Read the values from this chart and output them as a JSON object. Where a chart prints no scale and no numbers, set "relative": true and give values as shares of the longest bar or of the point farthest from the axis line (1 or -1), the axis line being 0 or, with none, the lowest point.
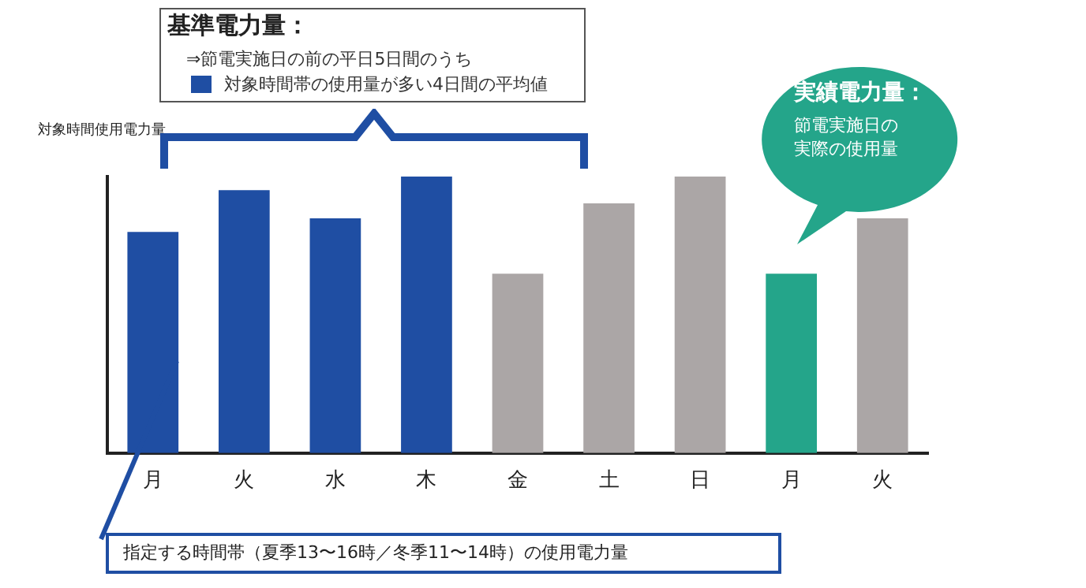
{
  "chart_data": {
    "type": "bar",
    "title": "基準電力量：",
    "ylabel": "対象時間使用電力量",
    "categories": [
      "月",
      "火",
      "水",
      "木",
      "金",
      "土",
      "日",
      "月",
      "火"
    ],
    "relative": true,
    "values": [
      0.8,
      0.951,
      0.849,
      1,
      0.649,
      0.903,
      1,
      0.649,
      0.849
    ],
    "colors": [
      "#1f4ea3",
      "#1f4ea3",
      "#1f4ea3",
      "#1f4ea3",
      "#aba6a6",
      "#aba6a6",
      "#aba6a6",
      "#24a58a",
      "#aba6a6"
    ],
    "annotations": [
      "⇒節電実施日の前の平日5日間のうち",
      "対象時間帯の使用量が多い4日間の平均値",
      "実績電力量：",
      "節電実施日の実際の使用量",
      "指定する時間帯（夏季13〜16時／冬季11〜14時）の使用電力量"
    ],
    "grid": false,
    "legend": false
  }
}
